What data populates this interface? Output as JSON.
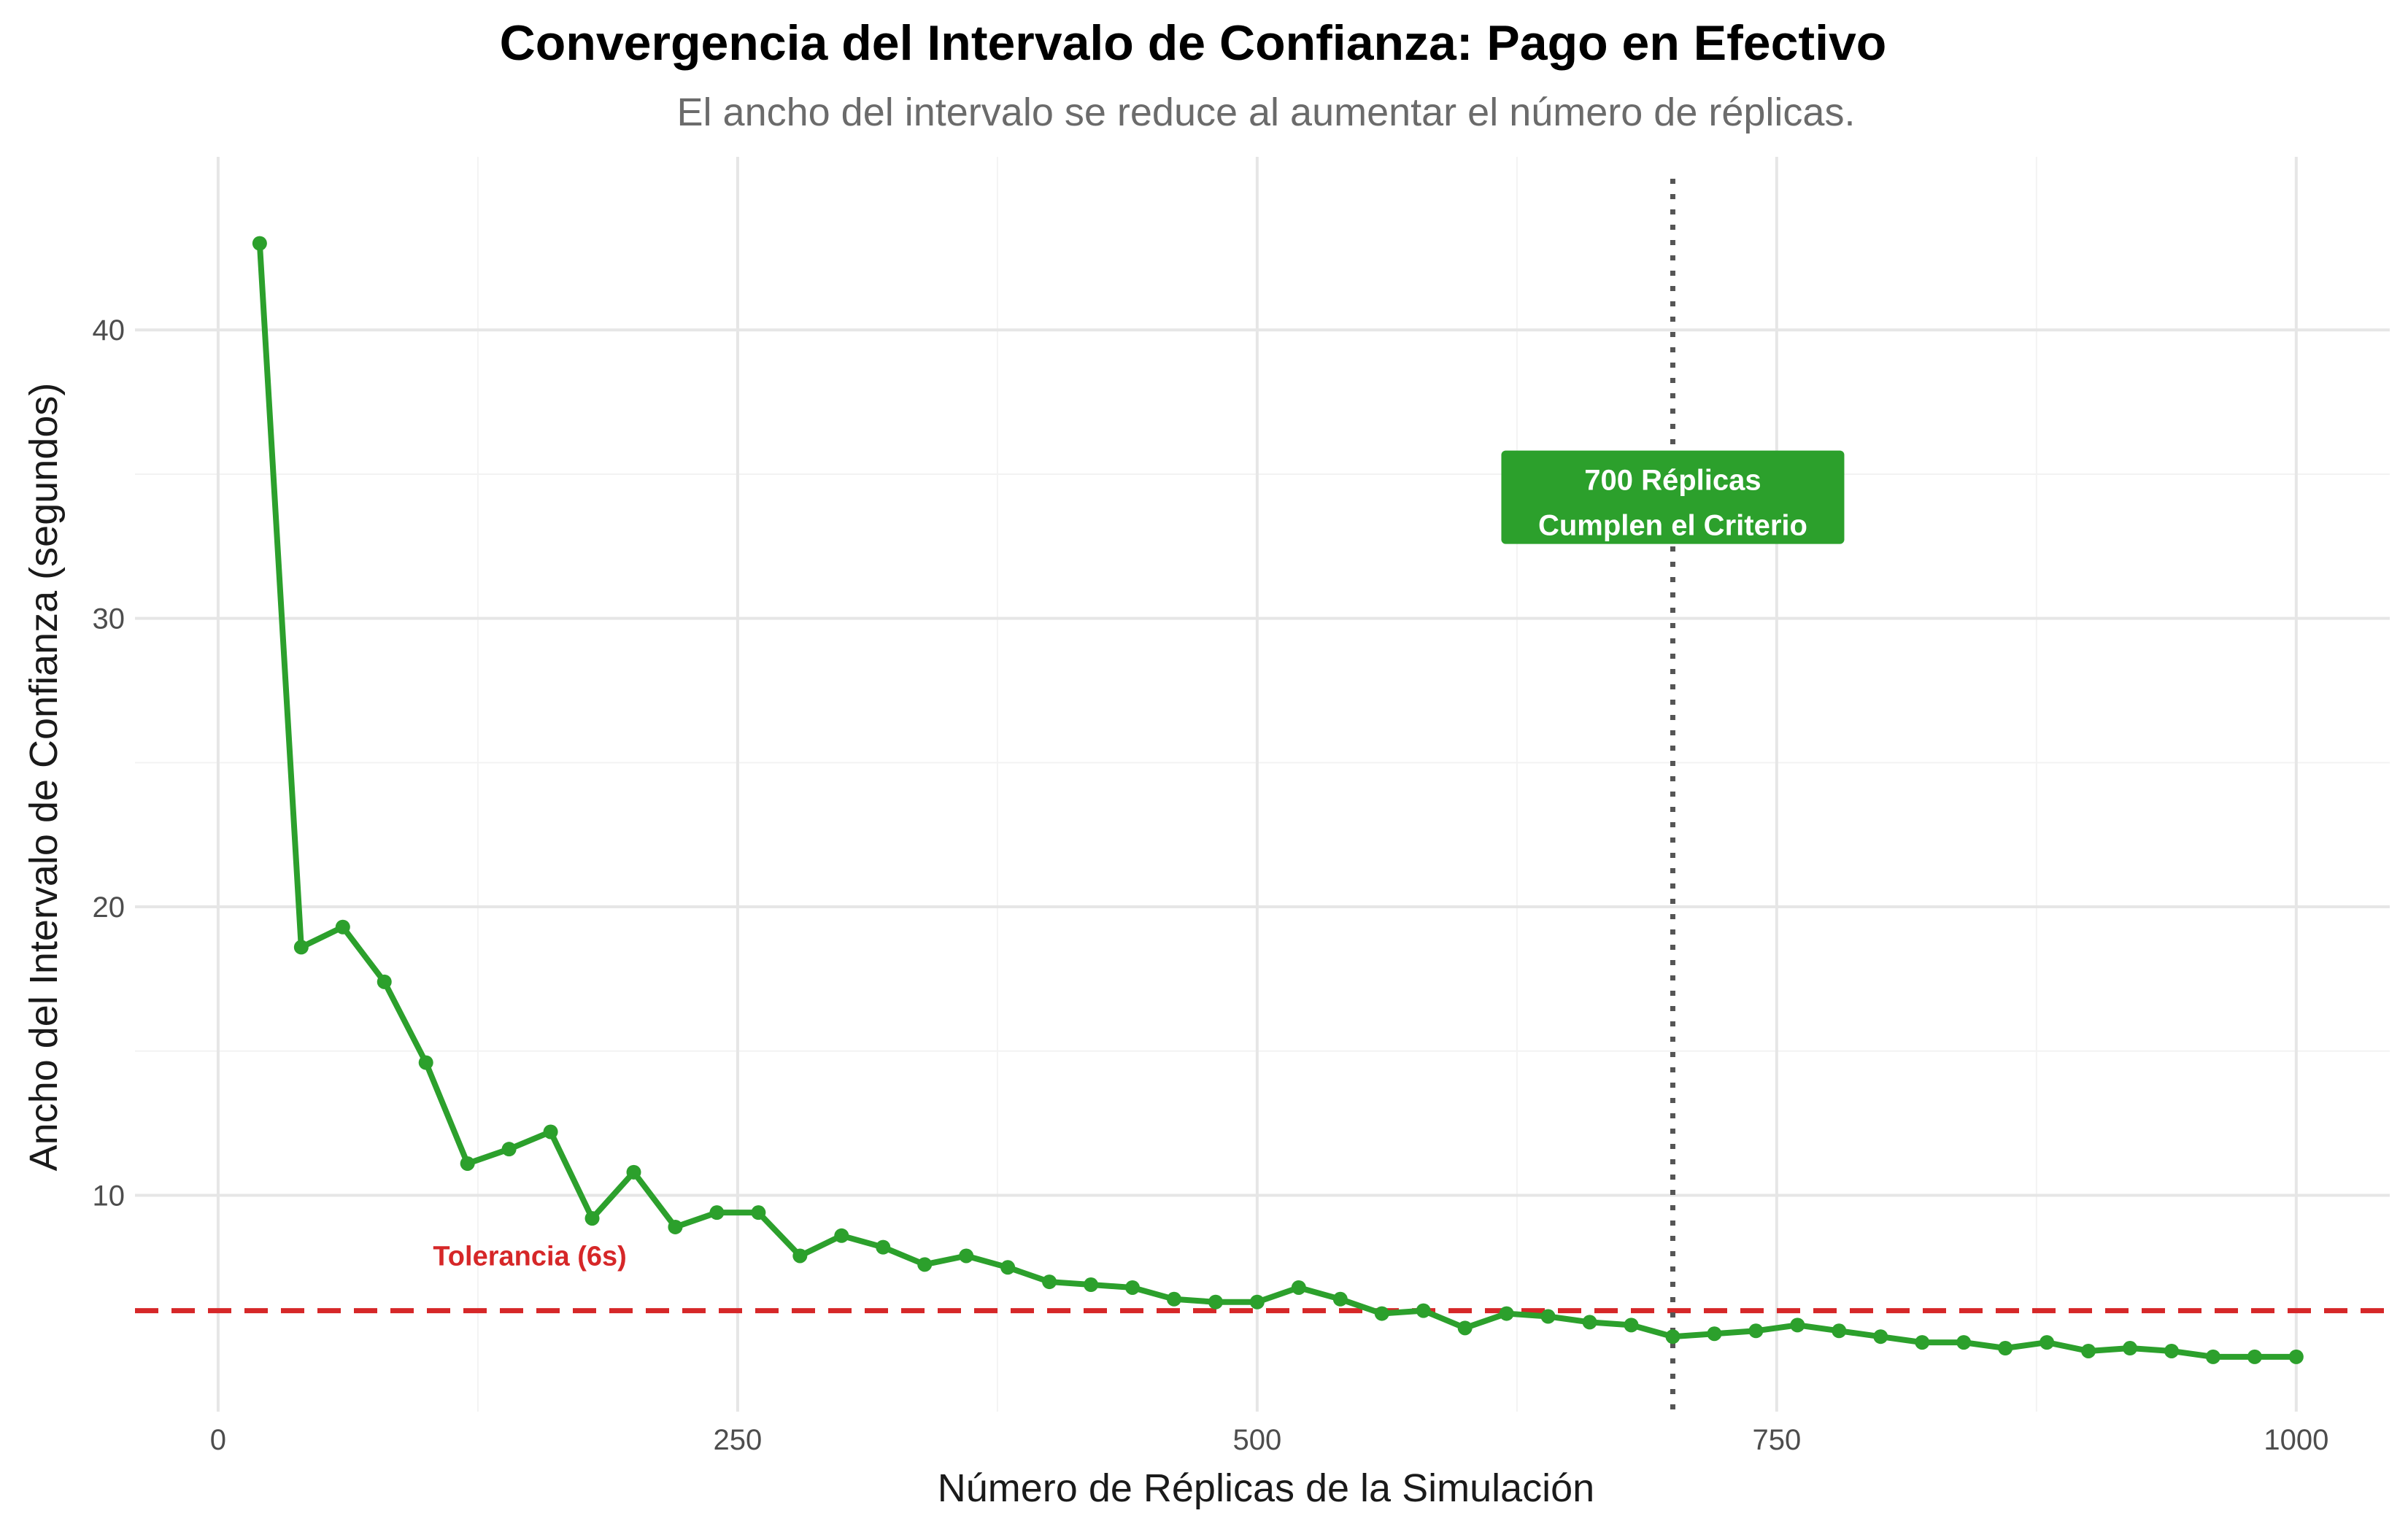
{
  "chart_data": {
    "type": "line",
    "title": "Convergencia del Intervalo de Confianza: Pago en Efectivo",
    "subtitle": "El ancho del intervalo se reduce al aumentar el número de réplicas.",
    "xlabel": "Número de Réplicas de la Simulación",
    "ylabel": "Ancho del Intervalo de Confianza (segundos)",
    "xlim": [
      -40,
      1045
    ],
    "ylim": [
      2.5,
      46
    ],
    "x_ticks": [
      0,
      250,
      500,
      750,
      1000
    ],
    "y_ticks": [
      10,
      20,
      30,
      40
    ],
    "grid": true,
    "line_color": "#2ca02c",
    "series": [
      {
        "x": [
          20,
          40,
          60,
          80,
          100,
          120,
          140,
          160,
          180,
          200,
          220,
          240,
          260,
          280,
          300,
          320,
          340,
          360,
          380,
          400,
          420,
          440,
          460,
          480,
          500,
          520,
          540,
          560,
          580,
          600,
          620,
          640,
          660,
          680,
          700,
          720,
          740,
          760,
          780,
          800,
          820,
          840,
          860,
          880,
          900,
          920,
          940,
          960,
          980,
          1000
        ],
        "values": [
          43.0,
          18.6,
          19.3,
          17.4,
          14.6,
          11.1,
          11.6,
          12.2,
          9.2,
          10.8,
          8.9,
          9.4,
          9.4,
          7.9,
          8.6,
          8.2,
          7.6,
          7.9,
          7.5,
          7.0,
          6.9,
          6.8,
          6.4,
          6.3,
          6.3,
          6.8,
          6.4,
          5.9,
          6.0,
          5.4,
          5.9,
          5.8,
          5.6,
          5.5,
          5.1,
          5.2,
          5.3,
          5.5,
          5.3,
          5.1,
          4.9,
          4.9,
          4.7,
          4.9,
          4.6,
          4.7,
          4.6,
          4.4,
          4.4,
          4.4
        ]
      }
    ],
    "tolerance": {
      "y": 6,
      "label": "Tolerancia (6s)",
      "label_x": 150,
      "label_y": 7.9,
      "color": "#d62728"
    },
    "criterion": {
      "x": 700,
      "label_line1": "700 Réplicas",
      "label_line2": "Cumplen el Criterio",
      "label_y": 34.2,
      "color": "#555555",
      "box_color": "#2ca02c"
    }
  }
}
